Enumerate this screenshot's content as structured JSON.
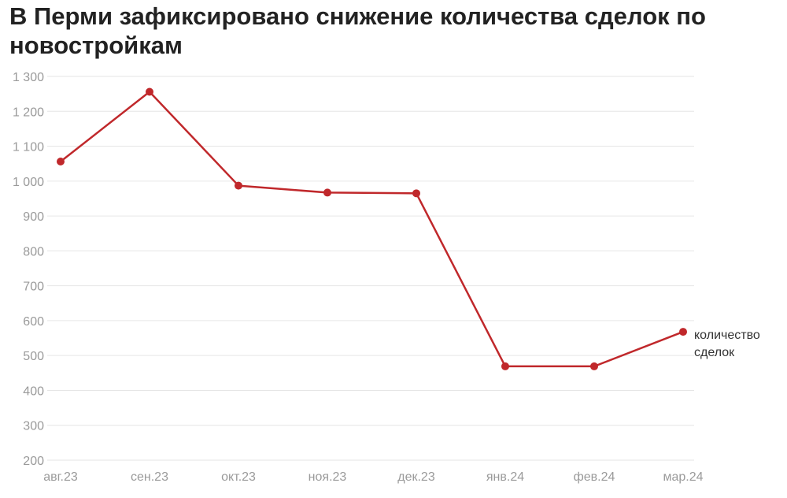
{
  "chart_data": {
    "type": "line",
    "title": "В Перми зафиксировано снижение количества сделок по новостройкам",
    "categories": [
      "авг.23",
      "сен.23",
      "окт.23",
      "ноя.23",
      "дек.23",
      "янв.24",
      "фев.24",
      "мар.24"
    ],
    "series": [
      {
        "name": "количество сделок",
        "values": [
          1056,
          1256,
          987,
          967,
          965,
          469,
          469,
          568
        ],
        "color": "#c0282b"
      }
    ],
    "yticks": [
      "200",
      "300",
      "400",
      "500",
      "600",
      "700",
      "800",
      "900",
      "1 000",
      "1 100",
      "1 200",
      "1 300"
    ],
    "ylim": [
      200,
      1300
    ],
    "grid": true,
    "legend": "end-of-line label"
  }
}
